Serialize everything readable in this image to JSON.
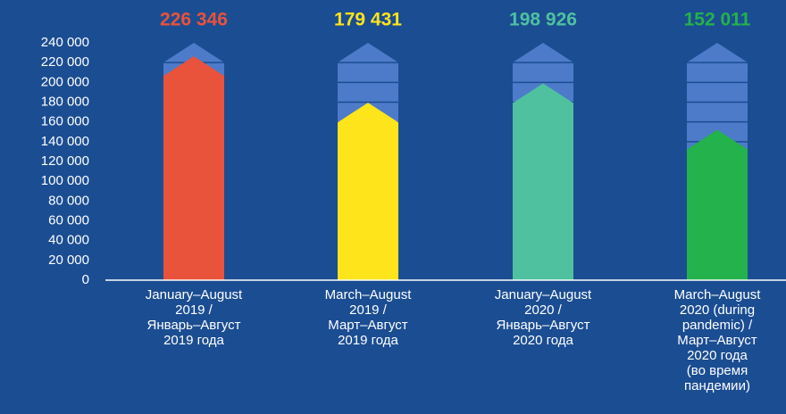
{
  "chart_data": {
    "type": "arrow-bar",
    "categories": [
      "January–August\n2019 /\nЯнварь–Август\n2019 года",
      "March–August\n2019 /\nМарт–Август\n2019 года",
      "January–August\n2020 /\nЯнварь–Август\n2020 года",
      "March–August\n2020 (during\npandemic) /\nМарт–Август\n2020 года\n(во время\nпандемии)"
    ],
    "values": [
      226346,
      179431,
      198926,
      152011
    ],
    "value_labels": [
      "226 346",
      "179 431",
      "198 926",
      "152 011"
    ],
    "colors": [
      "#e9523b",
      "#fde41b",
      "#4fc19f",
      "#23b24b"
    ],
    "ylim": [
      0,
      240000
    ],
    "yticks": [
      0,
      {
        "value": 20000,
        "label": "20 000"
      },
      {
        "value": 40000,
        "label": "40 000"
      },
      {
        "value": 60000,
        "label": "60 000"
      },
      {
        "value": 80000,
        "label": "80 000"
      },
      {
        "value": 100000,
        "label": "100 000"
      },
      {
        "value": 120000,
        "label": "120 000"
      },
      {
        "value": 140000,
        "label": "140 000"
      },
      {
        "value": 160000,
        "label": "160 000"
      },
      {
        "value": 180000,
        "label": "180 000"
      },
      {
        "value": 200000,
        "label": "200 000"
      },
      {
        "value": 220000,
        "label": "220 000"
      },
      {
        "value": 240000,
        "label": "240 000"
      }
    ]
  }
}
